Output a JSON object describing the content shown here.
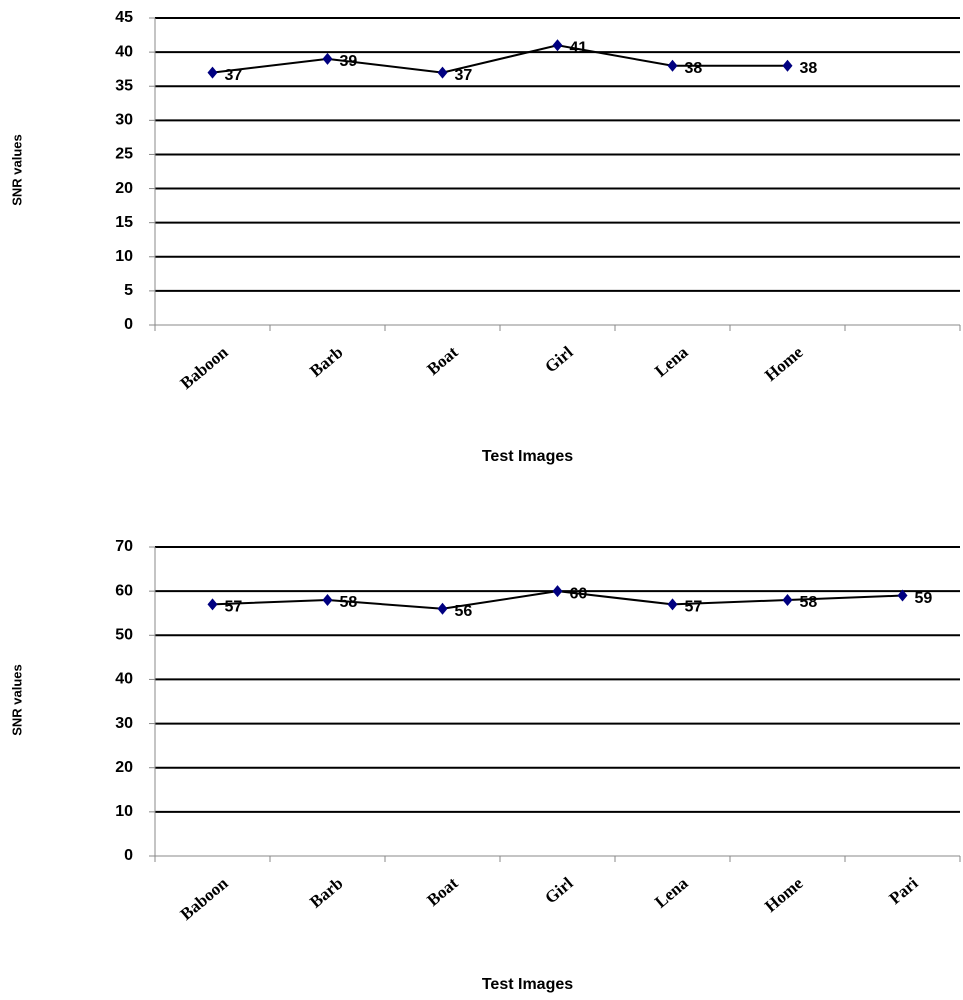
{
  "chart_data": [
    {
      "type": "line",
      "y_label": "SNR values",
      "x_label": "Test Images",
      "categories": [
        "Baboon",
        "Barb",
        "Boat",
        "Girl",
        "Lena",
        "Home",
        null
      ],
      "values": [
        37,
        39,
        37,
        41,
        38,
        38,
        null
      ],
      "color": "#000080",
      "line_color": "#000000",
      "ylim": [
        0,
        45
      ],
      "yticks": [
        0,
        5,
        10,
        15,
        20,
        25,
        30,
        35,
        40,
        45
      ],
      "grid": true
    },
    {
      "type": "line",
      "y_label": "SNR values",
      "x_label": "Test Images",
      "categories": [
        "Baboon",
        "Barb",
        "Boat",
        "Girl",
        "Lena",
        "Home",
        "Pari"
      ],
      "values": [
        57,
        58,
        56,
        60,
        57,
        58,
        59
      ],
      "color": "#000080",
      "line_color": "#000000",
      "ylim": [
        0,
        70
      ],
      "yticks": [
        0,
        10,
        20,
        30,
        40,
        50,
        60,
        70
      ],
      "grid": true
    }
  ]
}
